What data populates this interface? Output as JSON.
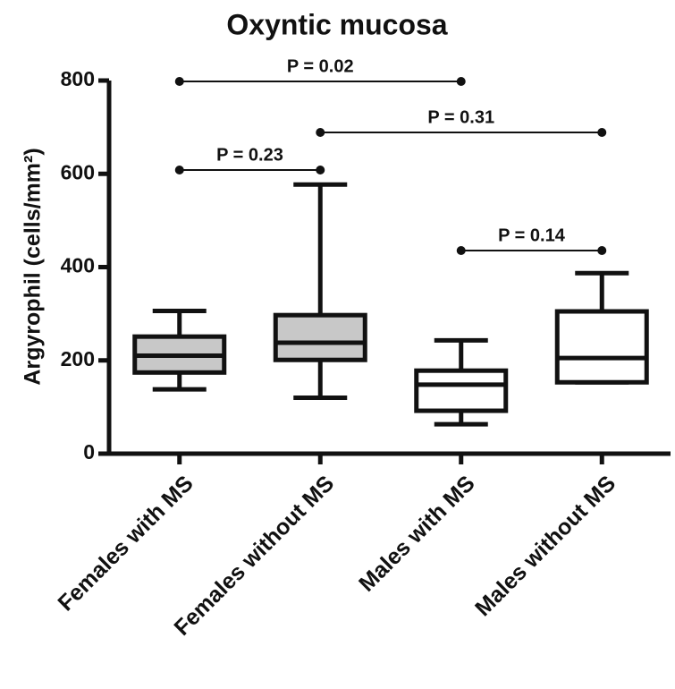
{
  "chart_data": {
    "type": "box",
    "title": "Oxyntic mucosa",
    "y_label": "Argyrophil (cells/mm²)",
    "categories": [
      "Females with MS",
      "Females without MS",
      "Males with MS",
      "Males without MS"
    ],
    "boxes": [
      {
        "min": 138,
        "q1": 174,
        "median": 210,
        "q3": 251,
        "max": 306,
        "color": "#c8c8c8"
      },
      {
        "min": 120,
        "q1": 201,
        "median": 238,
        "q3": 297,
        "max": 577,
        "color": "#c8c8c8"
      },
      {
        "min": 63,
        "q1": 92,
        "median": 148,
        "q3": 178,
        "max": 243,
        "color": "#ffffff"
      },
      {
        "min": 153,
        "q1": 153,
        "median": 205,
        "q3": 305,
        "max": 387,
        "color": "#ffffff"
      }
    ],
    "comparisons": [
      {
        "from": "Females with MS",
        "to": "Males with MS",
        "label": "P = 0.02"
      },
      {
        "from": "Females without MS",
        "to": "Males without MS",
        "label": "P = 0.31"
      },
      {
        "from": "Females with MS",
        "to": "Females without MS",
        "label": "P = 0.23"
      },
      {
        "from": "Males with MS",
        "to": "Males without MS",
        "label": "P = 0.14"
      }
    ],
    "ylim": [
      0,
      800
    ],
    "yticks": [
      0,
      200,
      400,
      600,
      800
    ]
  }
}
